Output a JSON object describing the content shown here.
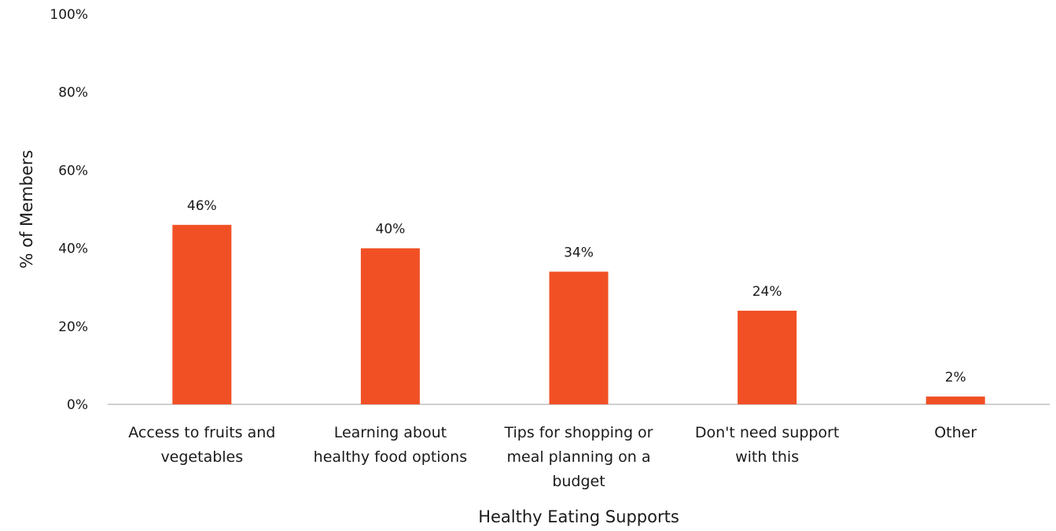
{
  "chart_data": {
    "type": "bar",
    "categories": [
      "Access to fruits and vegetables",
      "Learning about healthy food options",
      "Tips for shopping or meal planning on a budget",
      "Don't need support with this",
      "Other"
    ],
    "category_label_lines": [
      [
        "Access to fruits and",
        "vegetables"
      ],
      [
        "Learning about",
        "healthy food options"
      ],
      [
        "Tips for shopping or",
        "meal planning on a",
        "budget"
      ],
      [
        "Don't need support",
        "with this"
      ],
      [
        "Other"
      ]
    ],
    "values": [
      46,
      40,
      34,
      24,
      2
    ],
    "value_labels": [
      "46%",
      "40%",
      "34%",
      "24%",
      "2%"
    ],
    "title": "",
    "xlabel": "Healthy Eating Supports",
    "ylabel": "% of Members",
    "ylim": [
      0,
      100
    ],
    "y_ticks": [
      0,
      20,
      40,
      60,
      80,
      100
    ],
    "y_tick_labels": [
      "0%",
      "20%",
      "40%",
      "60%",
      "80%",
      "100%"
    ],
    "grid": false,
    "legend": "none",
    "bar_color": "#F15025",
    "axis_color": "#BFBFBF"
  }
}
